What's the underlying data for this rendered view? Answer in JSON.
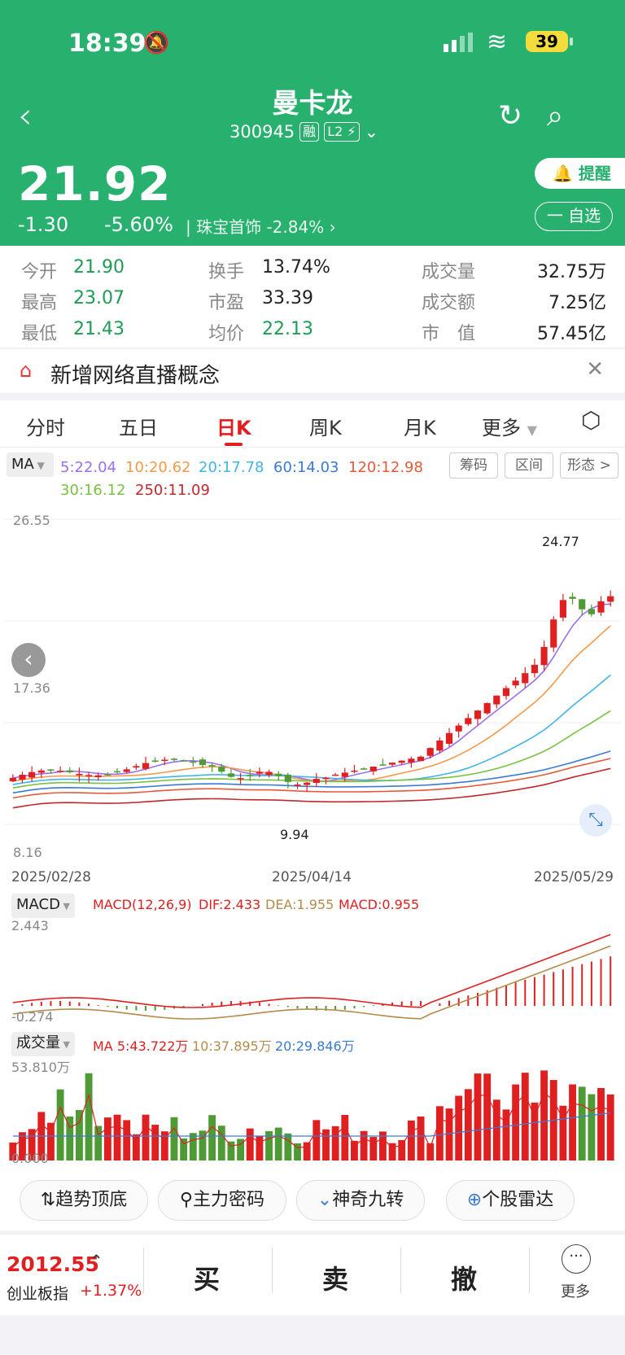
{
  "status": {
    "time": "18:39",
    "battery": "39"
  },
  "header": {
    "name": "曼卡龙",
    "code": "300945",
    "tag_rong": "融",
    "tag_l2": "L2",
    "price": "21.92",
    "change": "-1.30",
    "change_pct": "-5.60%",
    "sector": "珠宝首饰 -2.84%",
    "btn_alert": "提醒",
    "btn_fav": "一 自选"
  },
  "stats": {
    "open_l": "今开",
    "open": "21.90",
    "high_l": "最高",
    "high": "23.07",
    "low_l": "最低",
    "low": "21.43",
    "turn_l": "换手",
    "turn": "13.74%",
    "pe_l": "市盈",
    "pe": "33.39",
    "avg_l": "均价",
    "avg": "22.13",
    "vol_l": "成交量",
    "vol": "32.75万",
    "amt_l": "成交额",
    "amt": "7.25亿",
    "mcap_l": "市　值",
    "mcap": "57.45亿"
  },
  "notice": {
    "text": "新增网络直播概念"
  },
  "tabs": [
    "分时",
    "五日",
    "日K",
    "周K",
    "月K",
    "更多"
  ],
  "ma": {
    "sel": "MA",
    "ma5": "5:22.04",
    "ma10": "10:20.62",
    "ma20": "20:17.78",
    "ma60": "60:14.03",
    "ma120": "120:12.98",
    "ma30": "30:16.12",
    "ma250": "250:11.09",
    "chips": [
      "筹码",
      "区间",
      "形态 >"
    ]
  },
  "chart_labels": {
    "max": "26.55",
    "mid": "17.36",
    "min": "8.16",
    "high_mark": "24.77",
    "low_mark": "9.94",
    "d1": "2025/02/28",
    "d2": "2025/04/14",
    "d3": "2025/05/29"
  },
  "macd": {
    "sel": "MACD",
    "name": "MACD(12,26,9)",
    "dif": "DIF:2.433",
    "dea": "DEA:1.955",
    "macd": "MACD:0.955",
    "top": "2.443",
    "low": "-0.274"
  },
  "volume": {
    "sel": "成交量",
    "ma5": "MA 5:43.722万",
    "ma10": "10:37.895万",
    "ma20": "20:29.846万",
    "top": "53.810万",
    "low": "0.000"
  },
  "tools": [
    "趋势顶底",
    "主力密码",
    "神奇九转",
    "个股雷达"
  ],
  "bottom": {
    "index_val": "2012.55",
    "index_name": "创业板指",
    "index_pct": "+1.37%",
    "buy": "买",
    "sell": "卖",
    "cancel": "撤",
    "more": "更多"
  },
  "colors": {
    "up": "#e02020",
    "down": "#4e9a34",
    "header": "#27b06e",
    "ma5": "#9b6ff0",
    "ma10": "#f59a4a",
    "ma20": "#42b4e6",
    "ma60": "#3a7bd5",
    "ma120": "#e55a3a",
    "ma30": "#7ac142",
    "ma250": "#c0282c"
  }
}
